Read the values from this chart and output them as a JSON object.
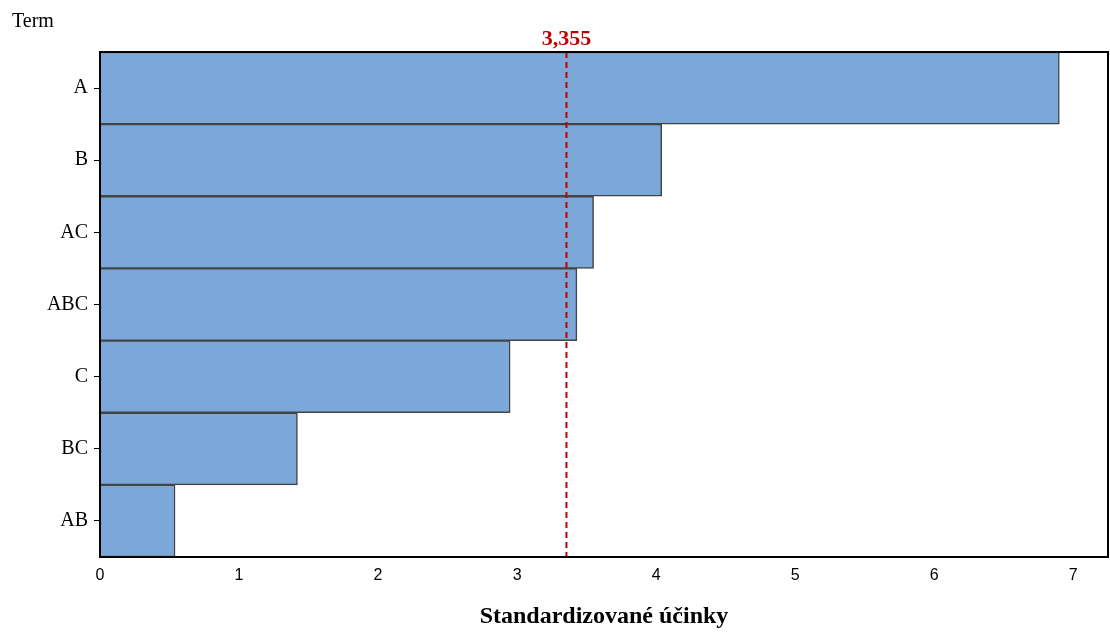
{
  "chart_data": {
    "type": "bar",
    "orientation": "horizontal",
    "ylabel": "Term",
    "xlabel": "Standardizované účinky",
    "categories": [
      "A",
      "B",
      "AC",
      "ABC",
      "C",
      "BC",
      "AB"
    ],
    "values": [
      6.9,
      4.04,
      3.55,
      3.43,
      2.95,
      1.42,
      0.54
    ],
    "color": "#7ba7d9",
    "xlim": [
      0,
      7.25
    ],
    "xticks": [
      0,
      1,
      2,
      3,
      4,
      5,
      6,
      7
    ],
    "ref_lines": [
      {
        "axis": "x",
        "value": 3.355,
        "label": "3,355",
        "color": "#c00000",
        "line_style": "dashed"
      }
    ],
    "grid": false,
    "legend": false
  }
}
